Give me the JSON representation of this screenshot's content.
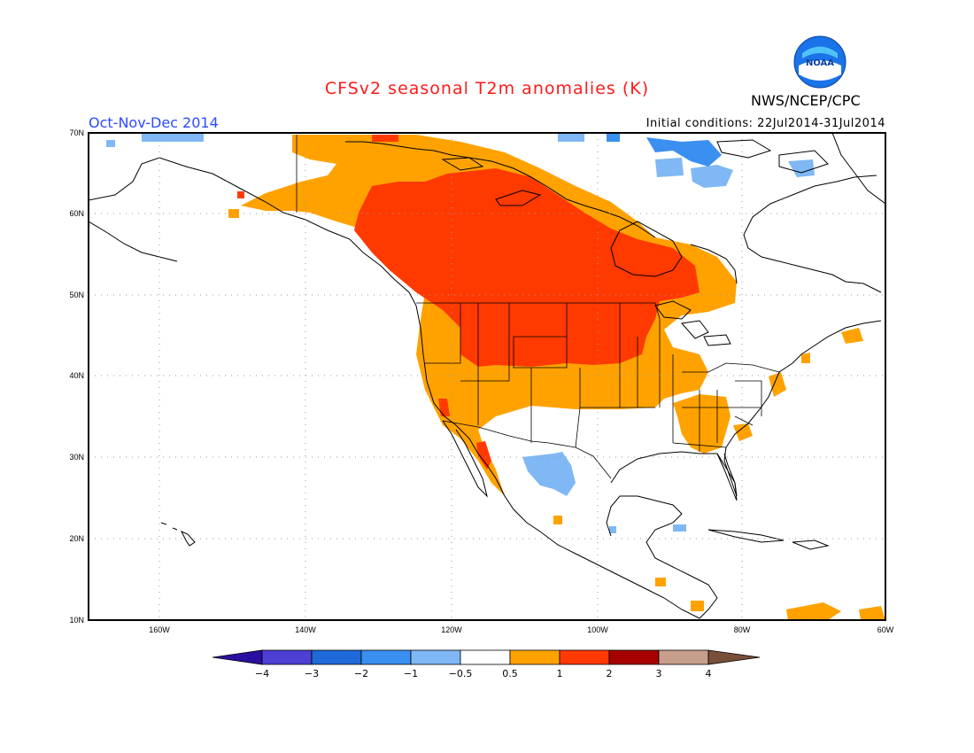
{
  "title": "CFSv2 seasonal T2m anomalies (K)",
  "season": "Oct-Nov-Dec 2014",
  "initial_conditions": "Initial conditions: 22Jul2014-31Jul2014",
  "agency": "NWS/NCEP/CPC",
  "logo_text": "NOAA",
  "map": {
    "lat_labels": [
      "70N",
      "60N",
      "50N",
      "40N",
      "30N",
      "20N",
      "10N"
    ],
    "lon_labels": [
      "160W",
      "140W",
      "120W",
      "100W",
      "80W",
      "60W"
    ]
  },
  "colorbar": {
    "labels": [
      "−4",
      "−3",
      "−2",
      "−1",
      "−0.5",
      "0.5",
      "1",
      "2",
      "3",
      "4"
    ],
    "colors": [
      "#2a0fa0",
      "#4c3fd2",
      "#1f6ad8",
      "#3a8ff0",
      "#7fb8f5",
      "#ffffff",
      "#ffa200",
      "#ff3a00",
      "#a60000",
      "#c79d8c",
      "#7a4f3a"
    ]
  },
  "colors": {
    "warm1": "#ffa200",
    "warm2": "#ff3a00",
    "warm3": "#e81a00",
    "cool1": "#7fb8f5",
    "cool2": "#3a8ff0"
  }
}
